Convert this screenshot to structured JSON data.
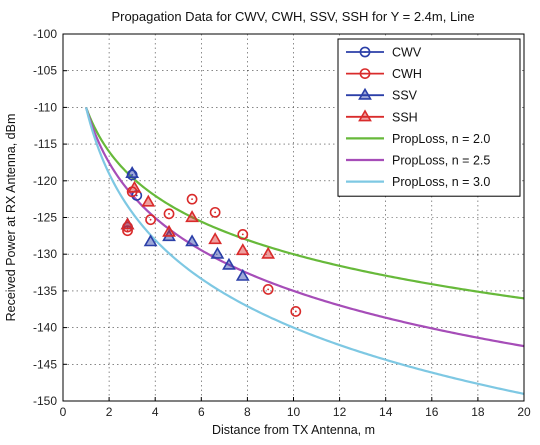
{
  "chart_data": {
    "type": "line",
    "title": "Propagation Data for CWV, CWH, SSV, SSH for Y = 2.4m, Line",
    "xlabel": "Distance from TX Antenna, m",
    "ylabel": "Received Power at RX Antenna, dBm",
    "xlim": [
      0,
      20
    ],
    "ylim": [
      -150,
      -100
    ],
    "xticks": [
      0,
      2,
      4,
      6,
      8,
      10,
      12,
      14,
      16,
      18,
      20
    ],
    "yticks": [
      -100,
      -105,
      -110,
      -115,
      -120,
      -125,
      -130,
      -135,
      -140,
      -145,
      -150
    ],
    "grid": true,
    "legend_position": "top-right",
    "series": [
      {
        "name": "CWV",
        "kind": "marker",
        "marker": "circle",
        "color": "#2b3fa8",
        "x": [
          3.0,
          3.2
        ],
        "y": [
          -119.2,
          -122.0
        ]
      },
      {
        "name": "CWH",
        "kind": "marker",
        "marker": "circle",
        "color": "#d92b2b",
        "x": [
          2.8,
          2.8,
          3.0,
          3.8,
          4.6,
          5.6,
          6.6,
          7.8,
          8.9,
          10.1
        ],
        "y": [
          -126.3,
          -126.8,
          -121.5,
          -125.3,
          -124.5,
          -122.5,
          -124.3,
          -127.3,
          -134.8,
          -137.8
        ]
      },
      {
        "name": "SSV",
        "kind": "marker",
        "marker": "triangle",
        "color": "#2b3fa8",
        "x": [
          2.8,
          3.0,
          3.8,
          4.6,
          5.6,
          6.7,
          7.2,
          7.8
        ],
        "y": [
          -126.0,
          -119.0,
          -128.3,
          -127.6,
          -128.3,
          -130.0,
          -131.5,
          -133.0
        ]
      },
      {
        "name": "SSH",
        "kind": "marker",
        "marker": "triangle",
        "color": "#d92b2b",
        "x": [
          2.8,
          3.1,
          3.7,
          4.6,
          5.6,
          6.6,
          7.8,
          8.9
        ],
        "y": [
          -126.0,
          -121.0,
          -122.9,
          -127.0,
          -125.0,
          -128.0,
          -129.5,
          -130.0
        ]
      },
      {
        "name": "PropLoss, n = 2.0",
        "kind": "line",
        "color": "#67b93a",
        "exponent": 2.0,
        "ref_x": 1,
        "ref_y": -110,
        "x": [
          1,
          2,
          4,
          6,
          8,
          10,
          12,
          14,
          16,
          18,
          20
        ],
        "y": [
          -110.0,
          -116.0,
          -122.0,
          -125.6,
          -128.1,
          -130.0,
          -131.6,
          -132.9,
          -134.1,
          -135.1,
          -136.0
        ]
      },
      {
        "name": "PropLoss, n = 2.5",
        "kind": "line",
        "color": "#a64db8",
        "exponent": 2.5,
        "ref_x": 1,
        "ref_y": -110,
        "x": [
          1,
          2,
          4,
          6,
          8,
          10,
          12,
          14,
          16,
          18,
          20
        ],
        "y": [
          -110.0,
          -117.5,
          -125.1,
          -129.5,
          -132.6,
          -135.0,
          -137.0,
          -138.7,
          -140.1,
          -141.4,
          -142.5
        ]
      },
      {
        "name": "PropLoss, n = 3.0",
        "kind": "line",
        "color": "#7ec8e3",
        "exponent": 3.0,
        "ref_x": 1,
        "ref_y": -110,
        "x": [
          1,
          2,
          4,
          6,
          8,
          10,
          12,
          14,
          16,
          18,
          20
        ],
        "y": [
          -110.0,
          -119.0,
          -128.1,
          -133.3,
          -137.1,
          -140.0,
          -142.4,
          -144.4,
          -146.1,
          -147.7,
          -149.0
        ]
      }
    ]
  }
}
